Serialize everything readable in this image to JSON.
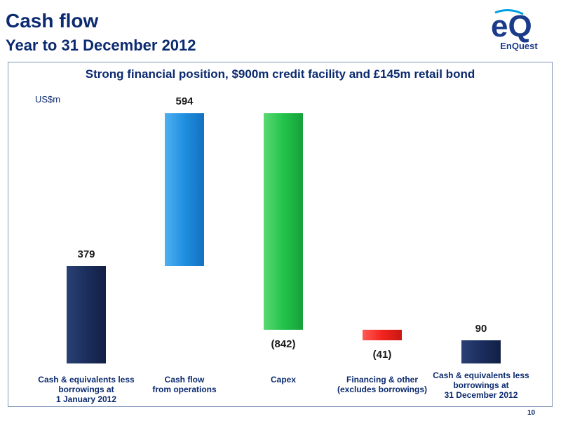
{
  "header": {
    "title": "Cash flow",
    "subtitle": "Year to 31 December 2012"
  },
  "logo": {
    "mark": "eQ",
    "name": "EnQuest",
    "colors": {
      "primary": "#1a3a8a",
      "accent": "#00a0e0"
    }
  },
  "footer": {
    "page_number": "10"
  },
  "chart_data": {
    "type": "bar",
    "subtype": "waterfall",
    "title": "Strong financial position, $900m credit facility and £145m retail bond",
    "unit": "US$m",
    "categories": [
      "Cash & equivalents less\nborrowings at\n1 January  2012",
      "Cash flow\nfrom operations",
      "Capex",
      "Financing & other\n(excludes borrowings)",
      "Cash & equivalents less\nborrowings at\n31 December 2012"
    ],
    "values": [
      379,
      594,
      -842,
      -41,
      90
    ],
    "value_labels": [
      "379",
      "594",
      "(842)",
      "(41)",
      "90"
    ],
    "bar_kinds": [
      "total",
      "change",
      "change",
      "change",
      "total"
    ],
    "colors": [
      "#1c2e5e",
      "#1e8fe0",
      "#22c34a",
      "#f2231e",
      "#1c2e5e"
    ],
    "ylim": [
      0,
      1000
    ],
    "grid": false,
    "legend": "none"
  }
}
